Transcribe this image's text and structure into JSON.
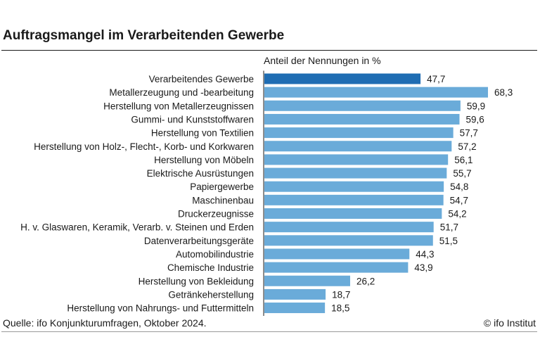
{
  "header": {
    "title": "Auftragsmangel im Verarbeitenden Gewerbe"
  },
  "chart_data": {
    "type": "bar",
    "orientation": "horizontal",
    "title": "Auftragsmangel im Verarbeitenden Gewerbe",
    "subtitle": "Anteil der Nennungen in %",
    "xlim": [
      0,
      70
    ],
    "grid": false,
    "legend": "none",
    "categories": [
      "Verarbeitendes Gewerbe",
      "Metallerzeugung und -bearbeitung",
      "Herstellung von Metallerzeugnissen",
      "Gummi- und Kunststoffwaren",
      "Herstellung von Textilien",
      "Herstellung von Holz-, Flecht-, Korb- und Korkwaren",
      "Herstellung von Möbeln",
      "Elektrische Ausrüstungen",
      "Papiergewerbe",
      "Maschinenbau",
      "Druckerzeugnisse",
      "H. v. Glaswaren, Keramik, Verarb. v. Steinen und Erden",
      "Datenverarbeitungsgeräte",
      "Automobilindustrie",
      "Chemische Industrie",
      "Herstellung von Bekleidung",
      "Getränkeherstellung",
      "Herstellung von Nahrungs- und Futtermitteln"
    ],
    "values": [
      47.7,
      68.3,
      59.9,
      59.6,
      57.7,
      57.2,
      56.1,
      55.7,
      54.8,
      54.7,
      54.2,
      51.7,
      51.5,
      44.3,
      43.9,
      26.2,
      18.7,
      18.5
    ],
    "value_labels": [
      "47,7",
      "68,3",
      "59,9",
      "59,6",
      "57,7",
      "57,2",
      "56,1",
      "55,7",
      "54,8",
      "54,7",
      "54,2",
      "51,7",
      "51,5",
      "44,3",
      "43,9",
      "26,2",
      "18,7",
      "18,5"
    ],
    "colors": {
      "highlight": "#1f6db3",
      "bar": "#6aabd9",
      "highlight_index": 0
    }
  },
  "footer": {
    "source": "Quelle: ifo Konjunkturumfragen, Oktober 2024.",
    "credit": "© ifo Institut"
  }
}
